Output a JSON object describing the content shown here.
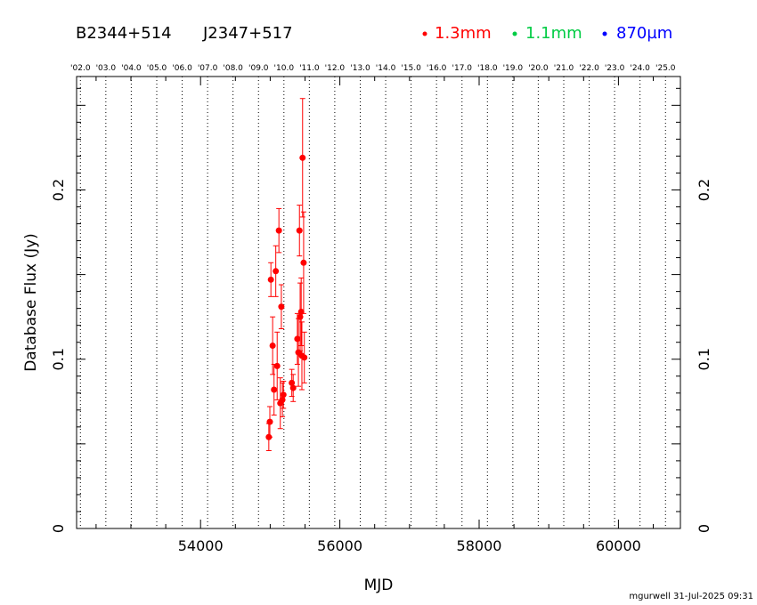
{
  "chart_data": {
    "type": "scatter",
    "title_left": "B2344+514",
    "title_right": "J2347+517",
    "xlabel": "MJD",
    "ylabel": "Database Flux (Jy)",
    "xlim": [
      52220,
      60890
    ],
    "ylim": [
      0,
      0.267
    ],
    "x_ticks": [
      54000,
      56000,
      58000,
      60000
    ],
    "x_tick_labels": [
      "54000",
      "56000",
      "58000",
      "60000"
    ],
    "y_ticks": [
      0,
      0.1,
      0.2
    ],
    "y_tick_labels": [
      "0",
      "0.1",
      "0.2"
    ],
    "year_labels": [
      "'02.0",
      "'03.0",
      "'04.0",
      "'05.0",
      "'06.0",
      "'07.0",
      "'08.0",
      "'09.0",
      "'10.0",
      "'11.0",
      "'12.0",
      "'13.0",
      "'14.0",
      "'15.0",
      "'16.0",
      "'17.0",
      "'18.0",
      "'19.0",
      "'20.0",
      "'21.0",
      "'22.0",
      "'23.0",
      "'24.0",
      "'25.0"
    ],
    "year_mjd": [
      52275,
      52640,
      53005,
      53371,
      53736,
      54101,
      54466,
      54832,
      55197,
      55562,
      55927,
      56293,
      56658,
      57023,
      57388,
      57754,
      58119,
      58484,
      58849,
      59215,
      59580,
      59945,
      60310,
      60676
    ],
    "legend": [
      {
        "label": "1.3mm",
        "color": "#ff0000"
      },
      {
        "label": "1.1mm",
        "color": "#00cc44"
      },
      {
        "label": "870µm",
        "color": "#0000ff"
      }
    ],
    "series": [
      {
        "name": "1.3mm",
        "color": "#ff0000",
        "points": [
          {
            "x": 54980,
            "y": 0.054,
            "err": 0.008
          },
          {
            "x": 54995,
            "y": 0.063,
            "err": 0.009
          },
          {
            "x": 55010,
            "y": 0.147,
            "err": 0.01
          },
          {
            "x": 55035,
            "y": 0.108,
            "err": 0.017
          },
          {
            "x": 55055,
            "y": 0.082,
            "err": 0.015
          },
          {
            "x": 55080,
            "y": 0.152,
            "err": 0.015
          },
          {
            "x": 55100,
            "y": 0.096,
            "err": 0.02
          },
          {
            "x": 55125,
            "y": 0.176,
            "err": 0.013
          },
          {
            "x": 55145,
            "y": 0.074,
            "err": 0.015
          },
          {
            "x": 55160,
            "y": 0.131,
            "err": 0.013
          },
          {
            "x": 55175,
            "y": 0.076,
            "err": 0.01
          },
          {
            "x": 55190,
            "y": 0.079,
            "err": 0.008
          },
          {
            "x": 55310,
            "y": 0.086,
            "err": 0.008
          },
          {
            "x": 55330,
            "y": 0.083,
            "err": 0.008
          },
          {
            "x": 55390,
            "y": 0.112,
            "err": 0.015
          },
          {
            "x": 55405,
            "y": 0.104,
            "err": 0.02
          },
          {
            "x": 55420,
            "y": 0.176,
            "err": 0.015
          },
          {
            "x": 55430,
            "y": 0.125,
            "err": 0.02
          },
          {
            "x": 55445,
            "y": 0.128,
            "err": 0.02
          },
          {
            "x": 55455,
            "y": 0.102,
            "err": 0.02
          },
          {
            "x": 55465,
            "y": 0.219,
            "err": 0.035
          },
          {
            "x": 55480,
            "y": 0.157,
            "err": 0.03
          },
          {
            "x": 55490,
            "y": 0.101,
            "err": 0.015
          }
        ]
      },
      {
        "name": "1.1mm",
        "color": "#00cc44",
        "points": []
      },
      {
        "name": "870µm",
        "color": "#0000ff",
        "points": []
      }
    ],
    "grid": "vertical dotted year lines"
  },
  "footer": {
    "text": "mgurwell 31-Jul-2025 09:31"
  }
}
